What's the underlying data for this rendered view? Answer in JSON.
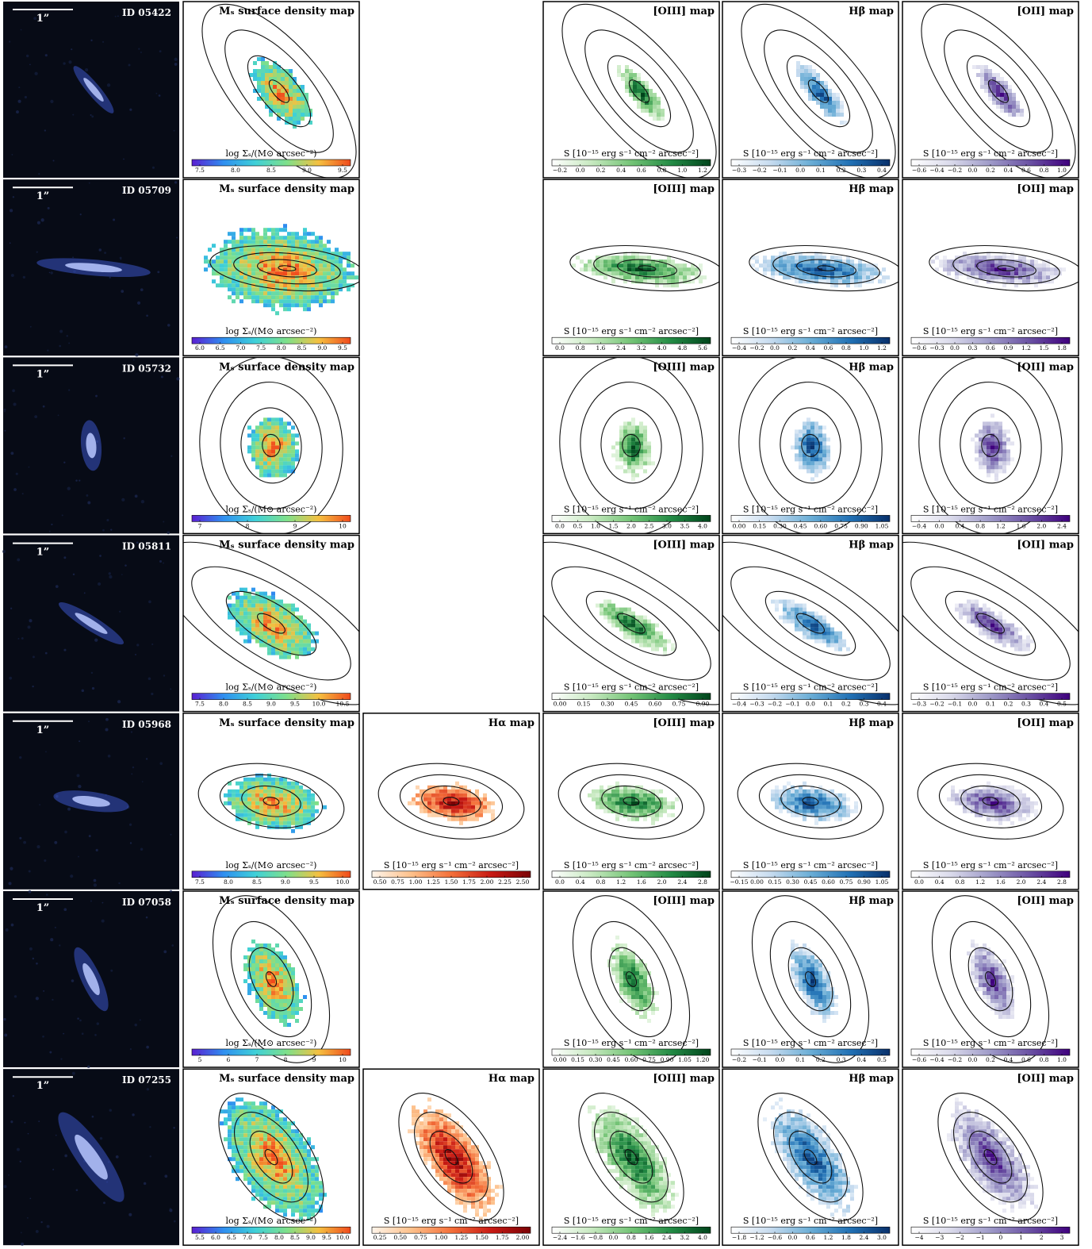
{
  "scalebar_label": "1”",
  "rows": [
    {
      "id": "ID 05422",
      "mass": {
        "title": "Mₛ surface density map",
        "cb_label": "log Σₛ/(M⊙ arcsec⁻²)",
        "ticks": [
          "7.5",
          "8.0",
          "8.5",
          "9.0",
          "9.5"
        ]
      },
      "ha": null,
      "oiii": {
        "title": "[OIII] map",
        "cb_label": "S [10⁻¹⁵ erg s⁻¹ cm⁻² arcsec⁻²]",
        "ticks": [
          "−0.2",
          "0.0",
          "0.2",
          "0.4",
          "0.6",
          "0.8",
          "1.0",
          "1.2"
        ]
      },
      "hb": {
        "title": "Hβ map",
        "cb_label": "S [10⁻¹⁵ erg s⁻¹ cm⁻² arcsec⁻²]",
        "ticks": [
          "−0.3",
          "−0.2",
          "−0.1",
          "0.0",
          "0.1",
          "0.2",
          "0.3",
          "0.4"
        ]
      },
      "oii": {
        "title": "[OII] map",
        "cb_label": "S [10⁻¹⁵ erg s⁻¹ cm⁻² arcsec⁻²]",
        "ticks": [
          "−0.6",
          "−0.4",
          "−0.2",
          "0.0",
          "0.2",
          "0.4",
          "0.6",
          "0.8",
          "1.0"
        ]
      }
    },
    {
      "id": "ID 05709",
      "mass": {
        "title": "Mₛ surface density map",
        "cb_label": "log Σₛ/(M⊙ arcsec⁻²)",
        "ticks": [
          "6.0",
          "6.5",
          "7.0",
          "7.5",
          "8.0",
          "8.5",
          "9.0",
          "9.5"
        ]
      },
      "ha": null,
      "oiii": {
        "title": "[OIII] map",
        "cb_label": "S [10⁻¹⁵ erg s⁻¹ cm⁻² arcsec⁻²]",
        "ticks": [
          "0.0",
          "0.8",
          "1.6",
          "2.4",
          "3.2",
          "4.0",
          "4.8",
          "5.6"
        ]
      },
      "hb": {
        "title": "Hβ map",
        "cb_label": "S [10⁻¹⁵ erg s⁻¹ cm⁻² arcsec⁻²]",
        "ticks": [
          "−0.4",
          "−0.2",
          "0.0",
          "0.2",
          "0.4",
          "0.6",
          "0.8",
          "1.0",
          "1.2"
        ]
      },
      "oii": {
        "title": "[OII] map",
        "cb_label": "S [10⁻¹⁵ erg s⁻¹ cm⁻² arcsec⁻²]",
        "ticks": [
          "−0.6",
          "−0.3",
          "0.0",
          "0.3",
          "0.6",
          "0.9",
          "1.2",
          "1.5",
          "1.8"
        ]
      }
    },
    {
      "id": "ID 05732",
      "mass": {
        "title": "Mₛ surface density map",
        "cb_label": "log Σₛ/(M⊙ arcsec⁻²)",
        "ticks": [
          "7",
          "8",
          "9",
          "10"
        ]
      },
      "ha": null,
      "oiii": {
        "title": "[OIII] map",
        "cb_label": "S [10⁻¹⁵ erg s⁻¹ cm⁻² arcsec⁻²]",
        "ticks": [
          "0.0",
          "0.5",
          "1.0",
          "1.5",
          "2.0",
          "2.5",
          "3.0",
          "3.5",
          "4.0"
        ]
      },
      "hb": {
        "title": "Hβ map",
        "cb_label": "S [10⁻¹⁵ erg s⁻¹ cm⁻² arcsec⁻²]",
        "ticks": [
          "0.00",
          "0.15",
          "0.30",
          "0.45",
          "0.60",
          "0.75",
          "0.90",
          "1.05"
        ]
      },
      "oii": {
        "title": "[OII] map",
        "cb_label": "S [10⁻¹⁵ erg s⁻¹ cm⁻² arcsec⁻²]",
        "ticks": [
          "−0.4",
          "0.0",
          "0.4",
          "0.8",
          "1.2",
          "1.6",
          "2.0",
          "2.4"
        ]
      }
    },
    {
      "id": "ID 05811",
      "mass": {
        "title": "Mₛ surface density map",
        "cb_label": "log Σₛ/(M⊙ arcsec⁻²)",
        "ticks": [
          "7.5",
          "8.0",
          "8.5",
          "9.0",
          "9.5",
          "10.0",
          "10.5"
        ]
      },
      "ha": null,
      "oiii": {
        "title": "[OIII] map",
        "cb_label": "S [10⁻¹⁵ erg s⁻¹ cm⁻² arcsec⁻²]",
        "ticks": [
          "0.00",
          "0.15",
          "0.30",
          "0.45",
          "0.60",
          "0.75",
          "0.90"
        ]
      },
      "hb": {
        "title": "Hβ map",
        "cb_label": "S [10⁻¹⁵ erg s⁻¹ cm⁻² arcsec⁻²]",
        "ticks": [
          "−0.4",
          "−0.3",
          "−0.2",
          "−0.1",
          "0.0",
          "0.1",
          "0.2",
          "0.3",
          "0.4"
        ]
      },
      "oii": {
        "title": "[OII] map",
        "cb_label": "S [10⁻¹⁵ erg s⁻¹ cm⁻² arcsec⁻²]",
        "ticks": [
          "−0.3",
          "−0.2",
          "−0.1",
          "0.0",
          "0.1",
          "0.2",
          "0.3",
          "0.4",
          "0.5"
        ]
      }
    },
    {
      "id": "ID 05968",
      "mass": {
        "title": "Mₛ surface density map",
        "cb_label": "log Σₛ/(M⊙ arcsec⁻²)",
        "ticks": [
          "7.5",
          "8.0",
          "8.5",
          "9.0",
          "9.5",
          "10.0"
        ]
      },
      "ha": {
        "title": "Hα map",
        "cb_label": "S [10⁻¹⁵ erg s⁻¹ cm⁻² arcsec⁻²]",
        "ticks": [
          "0.50",
          "0.75",
          "1.00",
          "1.25",
          "1.50",
          "1.75",
          "2.00",
          "2.25",
          "2.50"
        ]
      },
      "oiii": {
        "title": "[OIII] map",
        "cb_label": "S [10⁻¹⁵ erg s⁻¹ cm⁻² arcsec⁻²]",
        "ticks": [
          "0.0",
          "0.4",
          "0.8",
          "1.2",
          "1.6",
          "2.0",
          "2.4",
          "2.8"
        ]
      },
      "hb": {
        "title": "Hβ map",
        "cb_label": "S [10⁻¹⁵ erg s⁻¹ cm⁻² arcsec⁻²]",
        "ticks": [
          "−0.15",
          "0.00",
          "0.15",
          "0.30",
          "0.45",
          "0.60",
          "0.75",
          "0.90",
          "1.05"
        ]
      },
      "oii": {
        "title": "[OII] map",
        "cb_label": "S [10⁻¹⁵ erg s⁻¹ cm⁻² arcsec⁻²]",
        "ticks": [
          "0.0",
          "0.4",
          "0.8",
          "1.2",
          "1.6",
          "2.0",
          "2.4",
          "2.8"
        ]
      }
    },
    {
      "id": "ID 07058",
      "mass": {
        "title": "Mₛ surface density map",
        "cb_label": "log Σₛ/(M⊙ arcsec⁻²)",
        "ticks": [
          "5",
          "6",
          "7",
          "8",
          "9",
          "10"
        ]
      },
      "ha": null,
      "oiii": {
        "title": "[OIII] map",
        "cb_label": "S [10⁻¹⁵ erg s⁻¹ cm⁻² arcsec⁻²]",
        "ticks": [
          "0.00",
          "0.15",
          "0.30",
          "0.45",
          "0.60",
          "0.75",
          "0.90",
          "1.05",
          "1.20"
        ]
      },
      "hb": {
        "title": "Hβ map",
        "cb_label": "S [10⁻¹⁵ erg s⁻¹ cm⁻² arcsec⁻²]",
        "ticks": [
          "−0.2",
          "−0.1",
          "0.0",
          "0.1",
          "0.2",
          "0.3",
          "0.4",
          "0.5"
        ]
      },
      "oii": {
        "title": "[OII] map",
        "cb_label": "S [10⁻¹⁵ erg s⁻¹ cm⁻² arcsec⁻²]",
        "ticks": [
          "−0.6",
          "−0.4",
          "−0.2",
          "0.0",
          "0.2",
          "0.4",
          "0.6",
          "0.8",
          "1.0"
        ]
      }
    },
    {
      "id": "ID 07255",
      "mass": {
        "title": "Mₛ surface density map",
        "cb_label": "log Σₛ/(M⊙ arcsec⁻²)",
        "ticks": [
          "5.5",
          "6.0",
          "6.5",
          "7.0",
          "7.5",
          "8.0",
          "8.5",
          "9.0",
          "9.5",
          "10.0"
        ]
      },
      "ha": {
        "title": "Hα map",
        "cb_label": "S [10⁻¹⁵ erg s⁻¹ cm⁻² arcsec⁻²]",
        "ticks": [
          "0.25",
          "0.50",
          "0.75",
          "1.00",
          "1.25",
          "1.50",
          "1.75",
          "2.00"
        ]
      },
      "oiii": {
        "title": "[OIII] map",
        "cb_label": "S [10⁻¹⁵ erg s⁻¹ cm⁻² arcsec⁻²]",
        "ticks": [
          "−2.4",
          "−1.6",
          "−0.8",
          "0.0",
          "0.8",
          "1.6",
          "2.4",
          "3.2",
          "4.0"
        ]
      },
      "hb": {
        "title": "Hβ map",
        "cb_label": "S [10⁻¹⁵ erg s⁻¹ cm⁻² arcsec⁻²]",
        "ticks": [
          "−1.8",
          "−1.2",
          "−0.6",
          "0.0",
          "0.6",
          "1.2",
          "1.8",
          "2.4",
          "3.0"
        ]
      },
      "oii": {
        "title": "[OII] map",
        "cb_label": "S [10⁻¹⁵ erg s⁻¹ cm⁻² arcsec⁻²]",
        "ticks": [
          "−4",
          "−3",
          "−2",
          "−1",
          "0",
          "1",
          "2",
          "3"
        ]
      }
    }
  ],
  "colormaps": {
    "mass": [
      "#5a1fd1",
      "#2f8ff0",
      "#3fd0d8",
      "#7fe08a",
      "#f5c040",
      "#f04a1c"
    ],
    "ha": [
      "#fff5eb",
      "#fdc08a",
      "#f4703a",
      "#c81a14",
      "#7a0205"
    ],
    "oiii": [
      "#ffffff",
      "#c7e9c0",
      "#74c476",
      "#238b45",
      "#00441b"
    ],
    "hb": [
      "#ffffff",
      "#c6dbef",
      "#6baed6",
      "#2171b5",
      "#08306b"
    ],
    "oii": [
      "#ffffff",
      "#dadaeb",
      "#9e9ac8",
      "#6a51a3",
      "#3f007d"
    ]
  }
}
